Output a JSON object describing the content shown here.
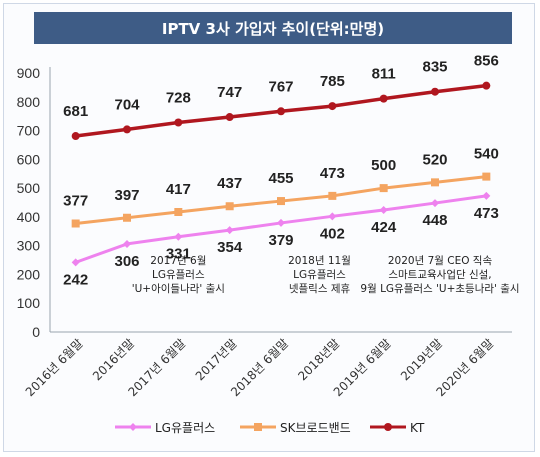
{
  "title": "IPTV 3사 가입자 추이(단위:만명)",
  "chart_data": {
    "type": "line",
    "title": "IPTV 3사 가입자 추이(단위:만명)",
    "categories": [
      "2016년 6월말",
      "2016년말",
      "2017년 6월말",
      "2017년말",
      "2018년 6월말",
      "2018년말",
      "2019년 6월말",
      "2019년말",
      "2020년 6월말"
    ],
    "ylim": [
      0,
      900
    ],
    "yticks": [
      0,
      100,
      200,
      300,
      400,
      500,
      600,
      700,
      800,
      900
    ],
    "grid": false,
    "legend_position": "bottom",
    "series": [
      {
        "name": "LG유플러스",
        "color": "#ee82ee",
        "marker": "diamond",
        "values": [
          242,
          306,
          331,
          354,
          379,
          402,
          424,
          448,
          473
        ]
      },
      {
        "name": "SK브로드밴드",
        "color": "#f4a460",
        "marker": "square",
        "values": [
          377,
          397,
          417,
          437,
          455,
          473,
          500,
          520,
          540
        ]
      },
      {
        "name": "KT",
        "color": "#b0171f",
        "marker": "circle",
        "values": [
          681,
          704,
          728,
          747,
          767,
          785,
          811,
          835,
          856
        ]
      }
    ],
    "annotations": [
      {
        "lines": [
          "2017년 6월",
          "LG유플러스",
          "'U+아이들나라' 출시"
        ]
      },
      {
        "lines": [
          "2018년 11월",
          "LG유플러스",
          "넷플릭스 제휴"
        ]
      },
      {
        "lines": [
          "2020년 7월 CEO 직속",
          "스마트교육사업단 신설,",
          "9월 LG유플러스 'U+초등나라' 출시"
        ]
      }
    ]
  }
}
